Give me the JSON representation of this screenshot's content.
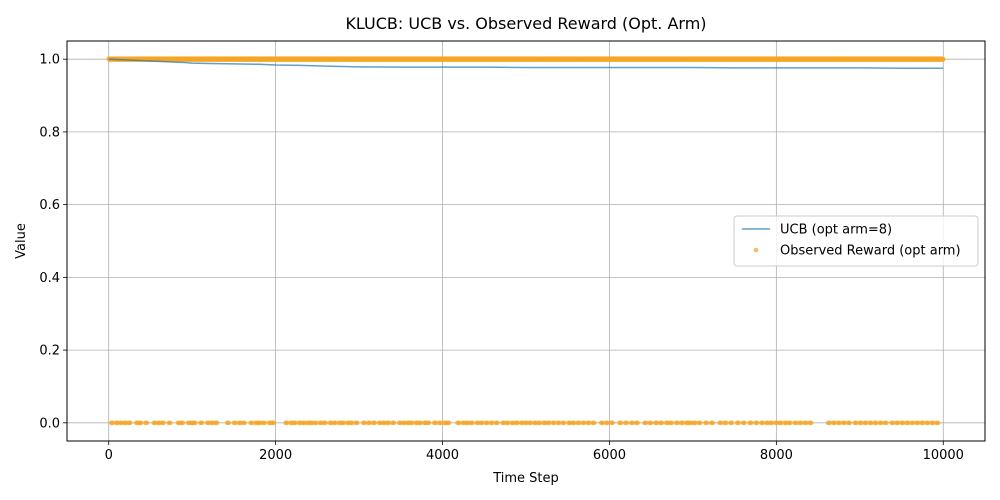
{
  "chart_data": {
    "type": "line",
    "title": "KLUCB: UCB vs. Observed Reward (Opt. Arm)",
    "xlabel": "Time Step",
    "ylabel": "Value",
    "xlim": [
      -500,
      10500
    ],
    "ylim": [
      -0.05,
      1.05
    ],
    "xticks": [
      0,
      2000,
      4000,
      6000,
      8000,
      10000
    ],
    "xtick_labels": [
      "0",
      "2000",
      "4000",
      "6000",
      "8000",
      "10000"
    ],
    "yticks": [
      0.0,
      0.2,
      0.4,
      0.6,
      0.8,
      1.0
    ],
    "ytick_labels": [
      "0.0",
      "0.2",
      "0.4",
      "0.6",
      "0.8",
      "1.0"
    ],
    "grid": true,
    "legend_position": "center-right",
    "series": [
      {
        "name": "UCB (opt arm=8)",
        "kind": "line",
        "color": "#1f77b4",
        "x": [
          0,
          100,
          200,
          300,
          400,
          500,
          700,
          900,
          1000,
          1200,
          1500,
          1800,
          2000,
          2300,
          2600,
          3000,
          3500,
          4000,
          4500,
          5000,
          5500,
          6000,
          6500,
          7000,
          7500,
          8000,
          8500,
          9000,
          9500,
          10000
        ],
        "y": [
          1.0,
          0.999,
          0.998,
          0.997,
          0.996,
          0.995,
          0.993,
          0.991,
          0.989,
          0.988,
          0.987,
          0.986,
          0.984,
          0.983,
          0.981,
          0.979,
          0.978,
          0.978,
          0.978,
          0.977,
          0.977,
          0.977,
          0.977,
          0.977,
          0.976,
          0.976,
          0.976,
          0.976,
          0.975,
          0.975
        ]
      },
      {
        "name": "Observed Reward (opt arm)",
        "kind": "scatter",
        "color": "#f5a623",
        "ones_x_range": [
          0,
          10000
        ],
        "zeros_x": [
          30,
          90,
          140,
          190,
          240,
          330,
          370,
          440,
          540,
          590,
          640,
          720,
          830,
          870,
          950,
          990,
          1020,
          1100,
          1180,
          1230,
          1280,
          1420,
          1500,
          1560,
          1610,
          1700,
          1760,
          1800,
          1850,
          1920,
          1960,
          2120,
          2180,
          2220,
          2280,
          2330,
          2380,
          2420,
          2470,
          2530,
          2580,
          2650,
          2700,
          2760,
          2800,
          2860,
          2900,
          2960,
          3050,
          3110,
          3170,
          3240,
          3290,
          3340,
          3400,
          3480,
          3530,
          3580,
          3620,
          3680,
          3720,
          3780,
          3820,
          3900,
          3960,
          4020,
          4060,
          4180,
          4240,
          4290,
          4340,
          4410,
          4460,
          4520,
          4580,
          4640,
          4720,
          4770,
          4830,
          4880,
          4940,
          4990,
          5040,
          5100,
          5150,
          5210,
          5260,
          5320,
          5380,
          5440,
          5510,
          5560,
          5620,
          5680,
          5740,
          5800,
          5900,
          5960,
          6020,
          6120,
          6190,
          6260,
          6320,
          6420,
          6480,
          6550,
          6610,
          6680,
          6730,
          6800,
          6860,
          6920,
          6960,
          7010,
          7070,
          7150,
          7220,
          7320,
          7380,
          7450,
          7530,
          7600,
          7680,
          7750,
          7820,
          7880,
          7930,
          7990,
          8040,
          8100,
          8150,
          8220,
          8280,
          8340,
          8400,
          8620,
          8680,
          8740,
          8800,
          8860,
          8940,
          9000,
          9060,
          9120,
          9180,
          9240,
          9300,
          9380,
          9440,
          9500,
          9560,
          9620,
          9680,
          9740,
          9800,
          9860,
          9920
        ]
      }
    ]
  }
}
